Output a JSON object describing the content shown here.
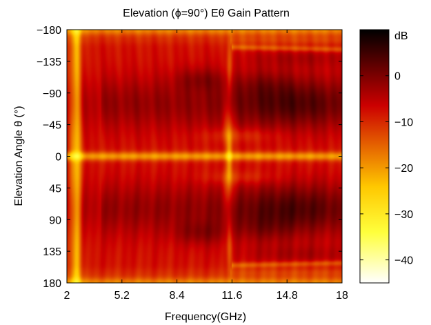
{
  "chart_data": {
    "type": "heatmap",
    "title": "Elevation (ϕ=90°) Eθ Gain Pattern",
    "xlabel": "Frequency(GHz)",
    "ylabel": "Elevation Angle θ (°)",
    "xlim": [
      2,
      18
    ],
    "ylim": [
      -180,
      180
    ],
    "y_direction": "reversed",
    "x_ticks": [
      "2",
      "5.2",
      "8.4",
      "11.6",
      "14.8",
      "18"
    ],
    "x_tick_values": [
      2,
      5.2,
      8.4,
      11.6,
      14.8,
      18
    ],
    "y_ticks": [
      "−180",
      "−135",
      "−90",
      "−45",
      "0",
      "45",
      "90",
      "135",
      "180"
    ],
    "y_tick_values": [
      -180,
      -135,
      -90,
      -45,
      0,
      45,
      90,
      135,
      180
    ],
    "colormap": "hot",
    "colorbar": {
      "unit": "dB",
      "range": [
        -45,
        10
      ],
      "ticks": [
        "0",
        "−10",
        "−20",
        "−30",
        "−40"
      ],
      "tick_values": [
        0,
        -10,
        -20,
        -30,
        -40
      ]
    },
    "features": [
      {
        "description": "bright bands near 0 and ±180 deg",
        "theta": [
          0,
          -180,
          180
        ],
        "gain_db": -18
      },
      {
        "description": "bright stripe near 2.6 GHz",
        "freq_ghz": 2.6,
        "gain_db": -25
      },
      {
        "description": "bright streak near 11.4 GHz",
        "freq_ghz": 11.4,
        "gain_db": -20
      },
      {
        "description": "deep nulls near ±75 deg, 13-17 GHz",
        "theta": [
          -75,
          75
        ],
        "freq_ghz": [
          13,
          17
        ],
        "gain_db": 3
      }
    ]
  }
}
